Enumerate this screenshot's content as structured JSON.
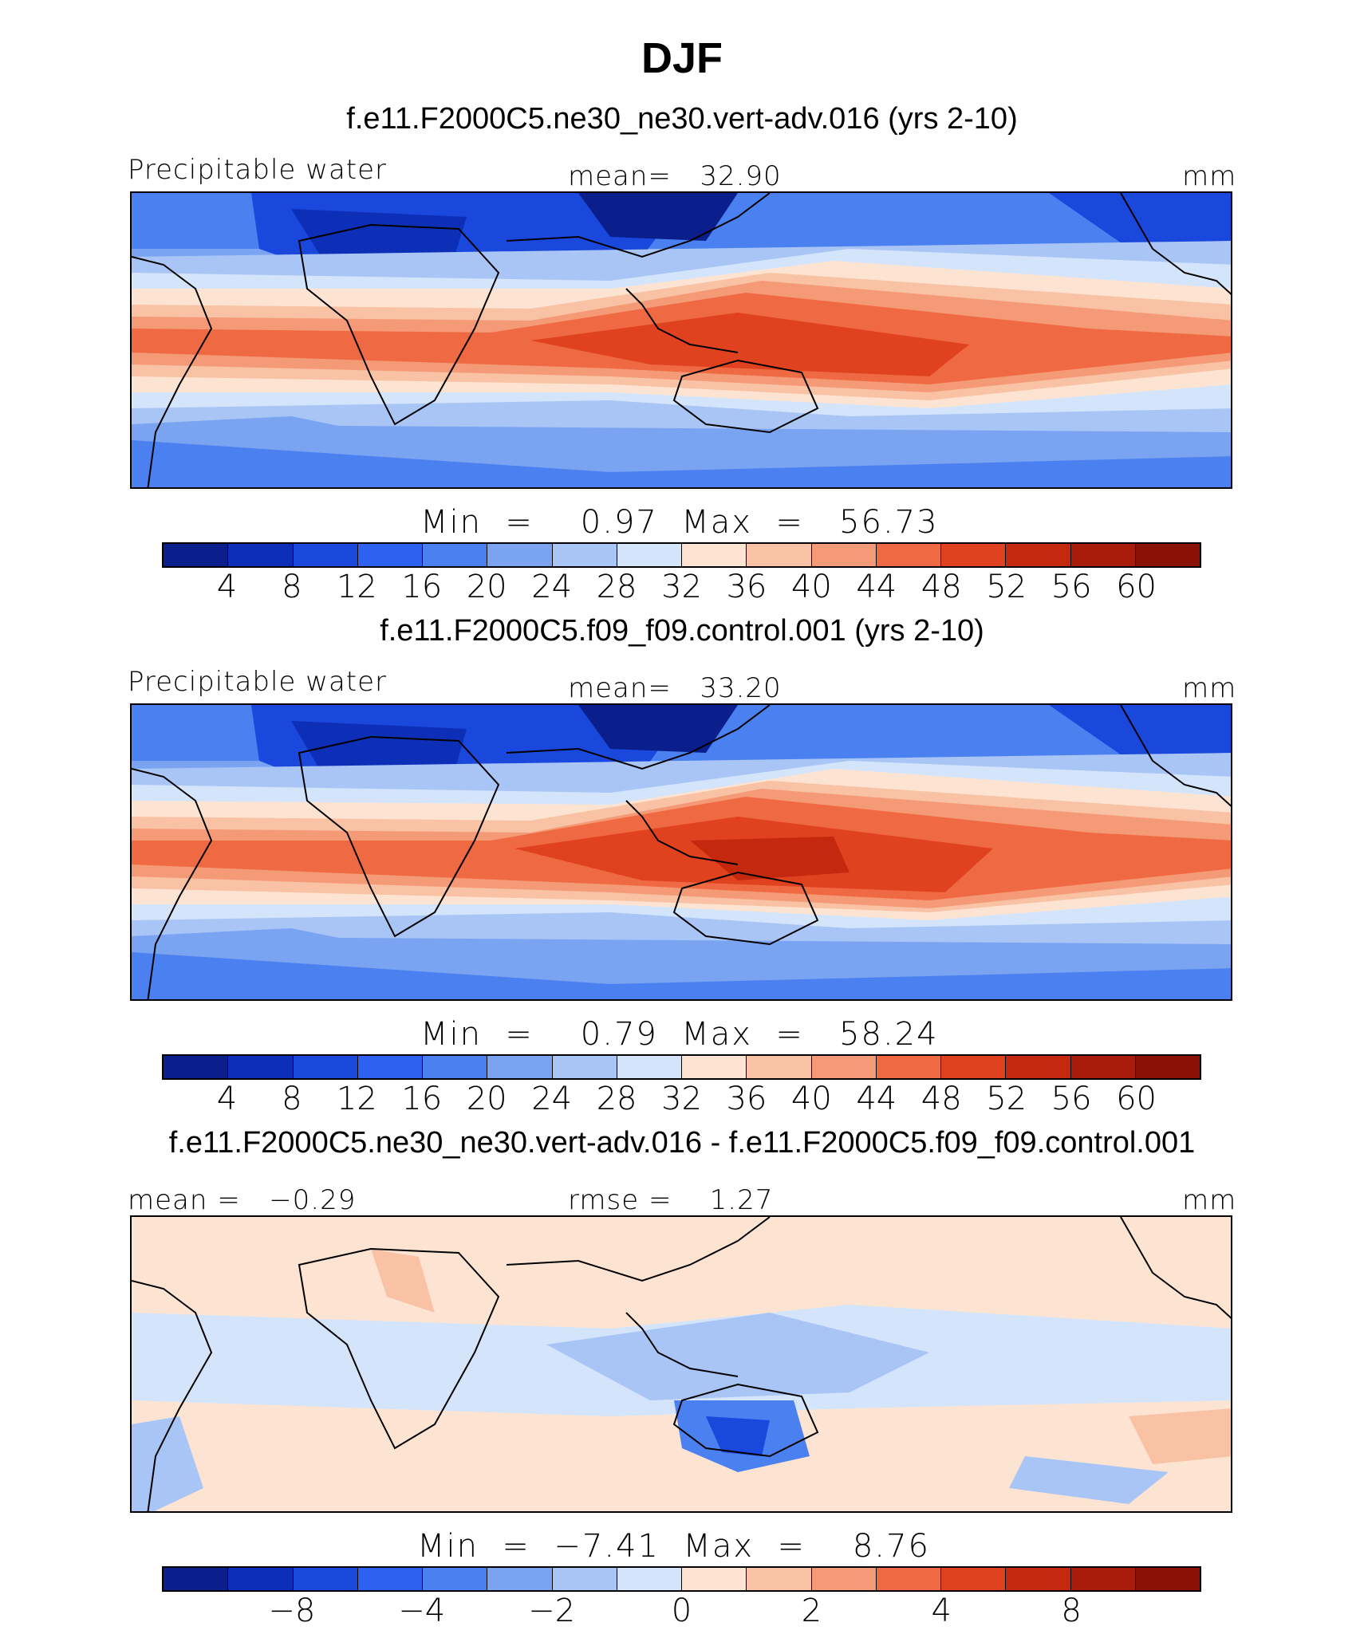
{
  "title": "DJF",
  "panels": [
    {
      "id": "p1",
      "case_title": "f.e11.F2000C5.ne30_ne30.vert-adv.016 (yrs 2-10)",
      "left_label": "Precipitable water",
      "center_label": "mean=   32.90",
      "right_label": "mm",
      "minmax": "Min  =    0.97  Max  =   56.73",
      "min": 0.97,
      "max": 56.73,
      "mean": 32.9,
      "colorbar_ticks": [
        "4",
        "8",
        "12",
        "16",
        "20",
        "24",
        "28",
        "32",
        "36",
        "40",
        "44",
        "48",
        "52",
        "56",
        "60"
      ]
    },
    {
      "id": "p2",
      "case_title": "f.e11.F2000C5.f09_f09.control.001 (yrs 2-10)",
      "left_label": "Precipitable water",
      "center_label": "mean=   33.20",
      "right_label": "mm",
      "minmax": "Min  =    0.79  Max  =   58.24",
      "min": 0.79,
      "max": 58.24,
      "mean": 33.2,
      "colorbar_ticks": [
        "4",
        "8",
        "12",
        "16",
        "20",
        "24",
        "28",
        "32",
        "36",
        "40",
        "44",
        "48",
        "52",
        "56",
        "60"
      ]
    },
    {
      "id": "p3",
      "case_title": "f.e11.F2000C5.ne30_ne30.vert-adv.016 - f.e11.F2000C5.f09_f09.control.001",
      "left_label": "mean =   −0.29",
      "center_label": "rmse =    1.27",
      "right_label": "mm",
      "minmax": "Min  =  −7.41  Max  =    8.76",
      "min": -7.41,
      "max": 8.76,
      "mean": -0.29,
      "rmse": 1.27,
      "colorbar_ticks": [
        "−8",
        "−4",
        "−2",
        "0",
        "2",
        "4",
        "8"
      ]
    }
  ],
  "colors": {
    "palette": [
      "#0a1e8c",
      "#0d2fb8",
      "#1a47dc",
      "#2d62f0",
      "#4a80ef",
      "#7aa3f2",
      "#a9c5f6",
      "#d4e4fb",
      "#fde4d2",
      "#f9c2a5",
      "#f59a76",
      "#ef6a43",
      "#e0421f",
      "#c4280e",
      "#a81d0a",
      "#8a1105"
    ]
  }
}
